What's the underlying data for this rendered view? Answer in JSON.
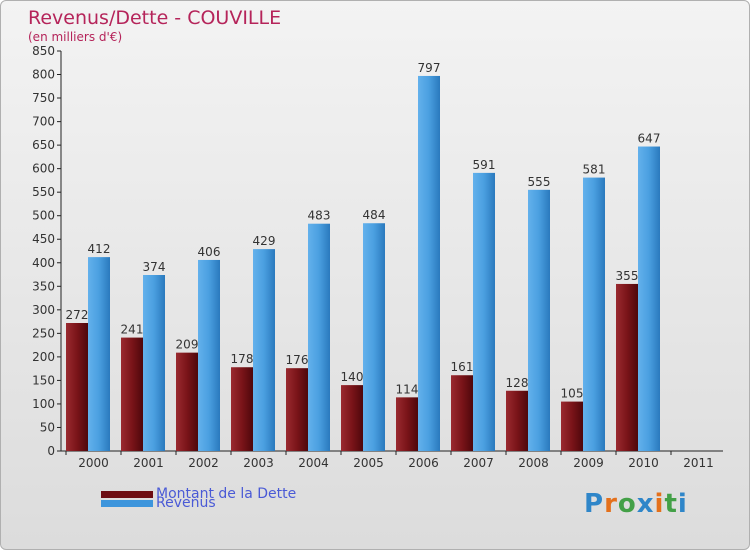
{
  "title": "Revenus/Dette - COUVILLE",
  "subtitle": "(en milliers d'€)",
  "logo": {
    "text": "Proxiti",
    "letter_colors": [
      "#2f86c9",
      "#e4701b",
      "#43a047",
      "#2f86c9",
      "#e4701b",
      "#43a047",
      "#2f86c9"
    ]
  },
  "colors": {
    "dette": "#6e0d12",
    "revenus": "#3d95dc",
    "title": "#b5245a",
    "legend_text": "#4a5ad6"
  },
  "chart_data": {
    "type": "bar",
    "title": "Revenus/Dette - COUVILLE",
    "subtitle": "(en milliers d'€)",
    "categories": [
      "2000",
      "2001",
      "2002",
      "2003",
      "2004",
      "2005",
      "2006",
      "2007",
      "2008",
      "2009",
      "2010",
      "2011"
    ],
    "series": [
      {
        "name": "Montant de la Dette",
        "values": [
          272,
          241,
          209,
          178,
          176,
          140,
          114,
          161,
          128,
          105,
          355,
          null
        ]
      },
      {
        "name": "Revenus",
        "values": [
          412,
          374,
          406,
          429,
          483,
          484,
          797,
          591,
          555,
          581,
          647,
          null
        ]
      }
    ],
    "ylim": [
      0,
      850
    ],
    "yticks": [
      0,
      50,
      100,
      150,
      200,
      250,
      300,
      350,
      400,
      450,
      500,
      550,
      600,
      650,
      700,
      750,
      800,
      850
    ],
    "grid": false,
    "legend_position": "bottom-left"
  }
}
